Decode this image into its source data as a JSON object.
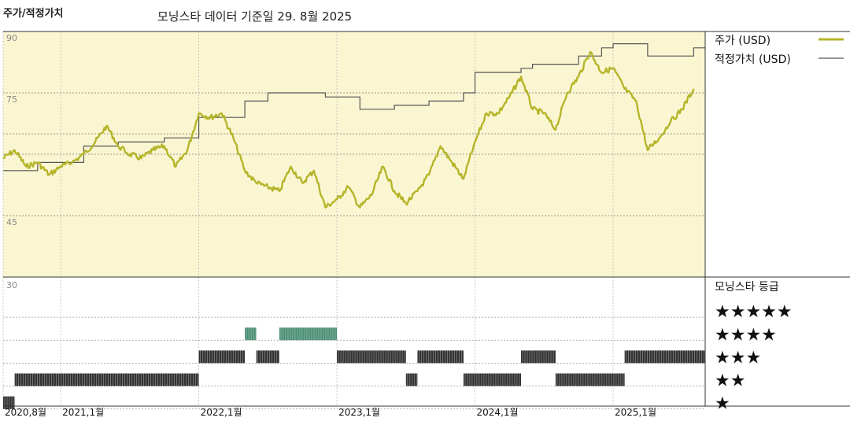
{
  "header": {
    "title": "주가/적정가치",
    "subtitle": "모닝스타 데이터 기준일 29. 8월 2025"
  },
  "colors": {
    "price": "#b5b52a",
    "fair": "#555555",
    "panel_bg": "#fbf6d2",
    "band_dark": "#333333",
    "band_green": "#4a8f74"
  },
  "chart_data": [
    {
      "type": "line",
      "title": "",
      "ylim": [
        30,
        90
      ],
      "yticks": [
        90,
        75,
        45
      ],
      "gridlines": [
        90,
        75,
        65,
        60,
        45
      ],
      "legend_position": "top-right",
      "x_range": [
        "2020-08",
        "2025-09"
      ],
      "x_ticks": [
        {
          "at": "2020-08",
          "label": "2020,8월"
        },
        {
          "at": "2021-01",
          "label": "2021,1월"
        },
        {
          "at": "2022-01",
          "label": "2022,1월"
        },
        {
          "at": "2023-01",
          "label": "2023,1월"
        },
        {
          "at": "2024-01",
          "label": "2024,1월"
        },
        {
          "at": "2025-01",
          "label": "2025,1월"
        }
      ],
      "series": [
        {
          "name": "주가 (USD)",
          "style": "line",
          "points": [
            [
              "2020-08",
              59
            ],
            [
              "2020-09",
              61
            ],
            [
              "2020-10",
              57
            ],
            [
              "2020-11",
              58
            ],
            [
              "2020-12",
              55
            ],
            [
              "2021-01",
              57
            ],
            [
              "2021-02",
              58
            ],
            [
              "2021-03",
              60
            ],
            [
              "2021-04",
              63
            ],
            [
              "2021-05",
              67
            ],
            [
              "2021-06",
              62
            ],
            [
              "2021-07",
              60
            ],
            [
              "2021-08",
              59
            ],
            [
              "2021-09",
              61
            ],
            [
              "2021-10",
              62
            ],
            [
              "2021-11",
              57
            ],
            [
              "2021-12",
              61
            ],
            [
              "2022-01",
              70
            ],
            [
              "2022-02",
              69
            ],
            [
              "2022-03",
              70
            ],
            [
              "2022-04",
              64
            ],
            [
              "2022-05",
              56
            ],
            [
              "2022-06",
              53
            ],
            [
              "2022-07",
              52
            ],
            [
              "2022-08",
              51
            ],
            [
              "2022-09",
              57
            ],
            [
              "2022-10",
              53
            ],
            [
              "2022-11",
              56
            ],
            [
              "2022-12",
              47
            ],
            [
              "2023-01",
              49
            ],
            [
              "2023-02",
              52
            ],
            [
              "2023-03",
              47
            ],
            [
              "2023-04",
              50
            ],
            [
              "2023-05",
              57
            ],
            [
              "2023-06",
              51
            ],
            [
              "2023-07",
              48
            ],
            [
              "2023-08",
              51
            ],
            [
              "2023-09",
              55
            ],
            [
              "2023-10",
              62
            ],
            [
              "2023-11",
              58
            ],
            [
              "2023-12",
              54
            ],
            [
              "2024-01",
              63
            ],
            [
              "2024-02",
              70
            ],
            [
              "2024-03",
              70
            ],
            [
              "2024-04",
              74
            ],
            [
              "2024-05",
              79
            ],
            [
              "2024-06",
              71
            ],
            [
              "2024-07",
              70
            ],
            [
              "2024-08",
              66
            ],
            [
              "2024-09",
              75
            ],
            [
              "2024-10",
              79
            ],
            [
              "2024-11",
              85
            ],
            [
              "2024-12",
              80
            ],
            [
              "2025-01",
              81
            ],
            [
              "2025-02",
              76
            ],
            [
              "2025-03",
              73
            ],
            [
              "2025-04",
              61
            ],
            [
              "2025-05",
              64
            ],
            [
              "2025-06",
              68
            ],
            [
              "2025-07",
              71
            ],
            [
              "2025-08",
              76
            ]
          ]
        },
        {
          "name": "적정가치 (USD)",
          "style": "step",
          "points": [
            [
              "2020-08",
              56
            ],
            [
              "2020-11",
              58
            ],
            [
              "2021-03",
              62
            ],
            [
              "2021-06",
              63
            ],
            [
              "2021-10",
              64
            ],
            [
              "2022-01",
              69
            ],
            [
              "2022-05",
              73
            ],
            [
              "2022-07",
              75
            ],
            [
              "2022-12",
              74
            ],
            [
              "2023-03",
              71
            ],
            [
              "2023-06",
              72
            ],
            [
              "2023-09",
              73
            ],
            [
              "2023-12",
              75
            ],
            [
              "2024-01",
              80
            ],
            [
              "2024-05",
              81
            ],
            [
              "2024-06",
              82
            ],
            [
              "2024-10",
              84
            ],
            [
              "2024-12",
              86
            ],
            [
              "2025-01",
              87
            ],
            [
              "2025-04",
              84
            ],
            [
              "2025-08",
              86
            ]
          ]
        }
      ]
    },
    {
      "type": "rating_bands",
      "title": "모닝스타 등급",
      "ytick": "30",
      "categories": [
        "★★★★★",
        "★★★★",
        "★★★",
        "★★",
        "★"
      ],
      "ratings": [
        {
          "from": "2020-08",
          "to": "2020-09",
          "stars": 1
        },
        {
          "from": "2020-09",
          "to": "2022-01",
          "stars": 2
        },
        {
          "from": "2022-01",
          "to": "2022-05",
          "stars": 3
        },
        {
          "from": "2022-05",
          "to": "2022-06",
          "stars": 4
        },
        {
          "from": "2022-06",
          "to": "2022-08",
          "stars": 3
        },
        {
          "from": "2022-08",
          "to": "2023-01",
          "stars": 4
        },
        {
          "from": "2023-01",
          "to": "2023-07",
          "stars": 3
        },
        {
          "from": "2023-07",
          "to": "2023-08",
          "stars": 2
        },
        {
          "from": "2023-08",
          "to": "2023-12",
          "stars": 3
        },
        {
          "from": "2023-12",
          "to": "2024-05",
          "stars": 2
        },
        {
          "from": "2024-05",
          "to": "2024-08",
          "stars": 3
        },
        {
          "from": "2024-08",
          "to": "2025-02",
          "stars": 2
        },
        {
          "from": "2025-02",
          "to": "2025-09",
          "stars": 3
        }
      ]
    }
  ]
}
